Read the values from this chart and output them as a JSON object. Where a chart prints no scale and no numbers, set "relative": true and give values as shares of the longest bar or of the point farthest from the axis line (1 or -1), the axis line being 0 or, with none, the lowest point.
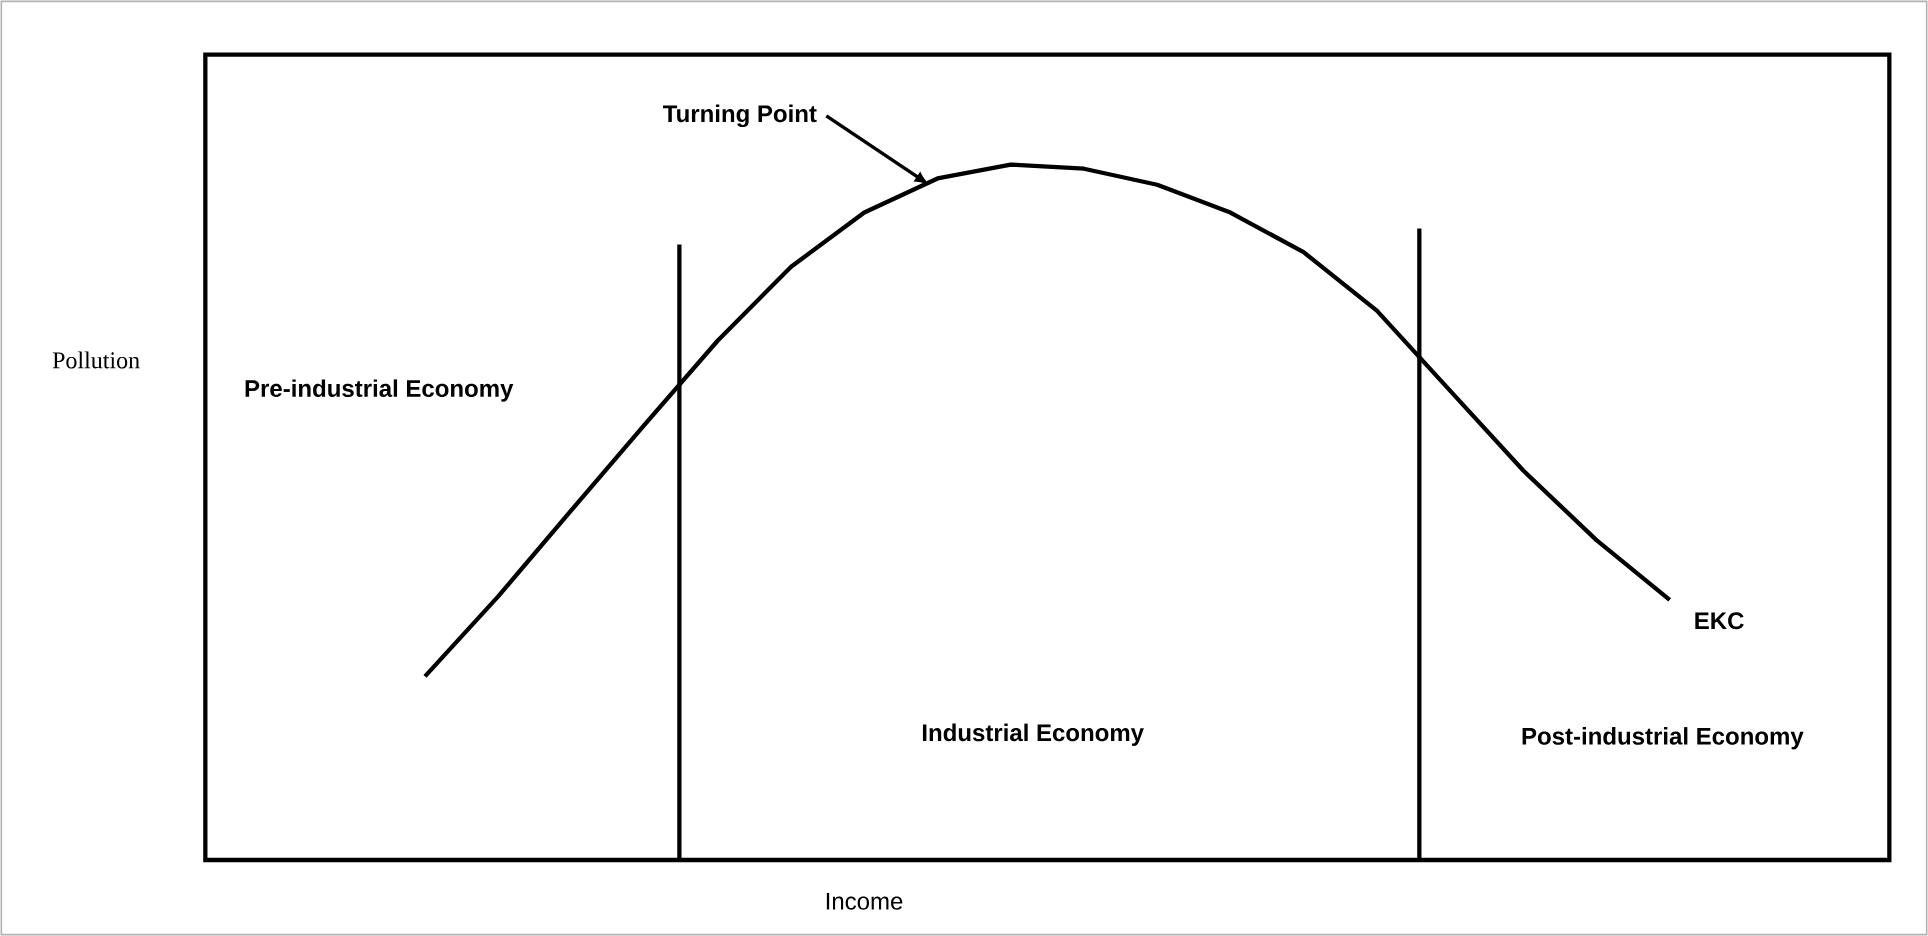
{
  "chart_data": {
    "type": "line",
    "relative": true,
    "xlabel": "Income",
    "ylabel": "Pollution",
    "categories": [
      null,
      null,
      null,
      null,
      null,
      null,
      null,
      null,
      null,
      null,
      null,
      null,
      null,
      null,
      null,
      null,
      null,
      null,
      null,
      null,
      null,
      null,
      null,
      null
    ],
    "series": [
      {
        "name": "EKC",
        "color": "#000000",
        "values": [
          null,
          null,
          null,
          0.264,
          0.379,
          0.503,
          0.626,
          0.747,
          0.853,
          0.931,
          0.98,
          1.0,
          0.994,
          0.971,
          0.931,
          0.874,
          0.79,
          0.675,
          0.56,
          0.46,
          0.374,
          null,
          null,
          null
        ]
      }
    ],
    "annotations": [
      "Turning Point",
      "Pre-industrial Economy",
      "Industrial Economy",
      "Post-industrial Economy"
    ]
  }
}
